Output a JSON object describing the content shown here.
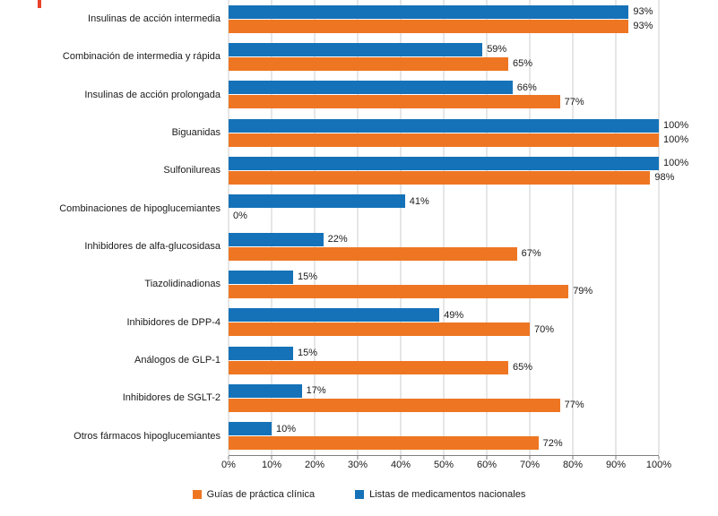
{
  "decor": {
    "top_left_marker_color": "#e8432a"
  },
  "colors": {
    "blue": "#1572b8",
    "orange": "#ee7623",
    "gridline": "#cdcdcd",
    "axis": "#7f7f7f"
  },
  "chart_data": {
    "type": "bar",
    "orientation": "horizontal",
    "title": "",
    "xlabel": "",
    "ylabel": "",
    "xlim": [
      0,
      100
    ],
    "grid": true,
    "legend_position": "bottom",
    "value_suffix": "%",
    "categories": [
      "Insulinas de acción intermedia",
      "Combinación de intermedia y rápida",
      "Insulinas de acción prolongada",
      "Biguanidas",
      "Sulfonilureas",
      "Combinaciones de hipoglucemiantes",
      "Inhibidores de alfa-glucosidasa",
      "Tiazolidinadionas",
      "Inhibidores de DPP-4",
      "Análogos de GLP-1",
      "Inhibidores de SGLT-2",
      "Otros fármacos hipoglucemiantes"
    ],
    "series": [
      {
        "key": "listas-nacionales",
        "name": "Listas de medicamentos nacionales",
        "color": "#1572b8",
        "values": [
          93,
          59,
          66,
          100,
          100,
          41,
          22,
          15,
          49,
          15,
          17,
          10
        ]
      },
      {
        "key": "guias-clinicas",
        "name": "Guías de práctica clínica",
        "color": "#ee7623",
        "values": [
          93,
          65,
          77,
          100,
          98,
          0,
          67,
          79,
          70,
          65,
          77,
          72
        ]
      }
    ],
    "tick_values": [
      0,
      10,
      20,
      30,
      40,
      50,
      60,
      70,
      80,
      90,
      100
    ],
    "tick_labels": [
      "0%",
      "10%",
      "20%",
      "30%",
      "40%",
      "50%",
      "60%",
      "70%",
      "80%",
      "90%",
      "100%"
    ]
  },
  "legend": {
    "items": [
      {
        "label": "Guías de práctica clínica",
        "color": "#ee7623"
      },
      {
        "label": "Listas de medicamentos nacionales",
        "color": "#1572b8"
      }
    ]
  }
}
